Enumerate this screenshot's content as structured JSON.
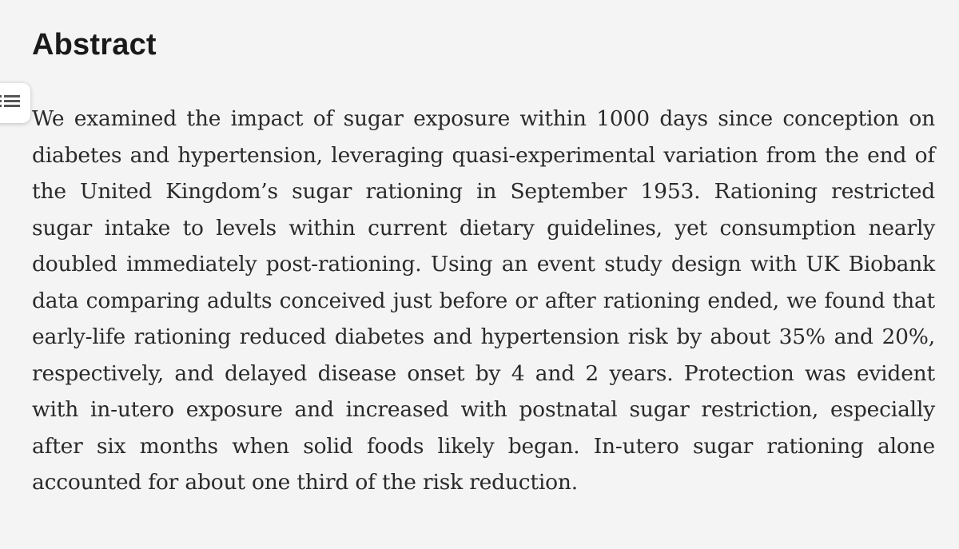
{
  "section": {
    "heading": "Abstract"
  },
  "outline_toggle": {
    "icon": "list-icon"
  },
  "abstract": {
    "text": "We examined the impact of sugar exposure within 1000 days since conception on diabetes and hypertension, leveraging quasi-experimental variation from the end of the United Kingdom’s sugar rationing in September 1953. Rationing restricted sugar intake to levels within current dietary guidelines, yet consumption nearly doubled immediately post-rationing. Using an event study design with UK Biobank data comparing adults conceived just before or after rationing ended, we found that early-life rationing reduced diabetes and hypertension risk by about 35% and 20%, respectively, and delayed disease onset by 4 and 2 years. Protection was evi­dent with in-utero exposure and increased with postnatal sugar restriction, espe­cially after six months when solid foods likely began. In-utero sugar rationing alone accounted for about one third of the risk reduction."
  }
}
